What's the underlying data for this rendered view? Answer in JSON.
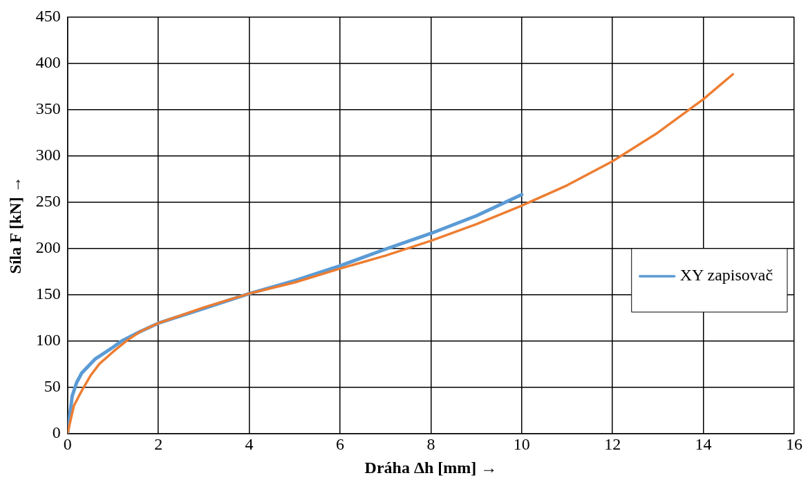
{
  "chart_data": {
    "type": "line",
    "xlabel": "Dráha Δh [mm] →",
    "ylabel": "Síla F [kN] →",
    "xlim": [
      0,
      16
    ],
    "xticks": [
      0,
      2,
      4,
      6,
      8,
      10,
      12,
      14,
      16
    ],
    "ylim": [
      0,
      450
    ],
    "yticks": [
      0,
      50,
      100,
      150,
      200,
      250,
      300,
      350,
      400,
      450
    ],
    "grid": true,
    "legend": "right",
    "marker": "none",
    "line_style": "solid",
    "series": [
      {
        "name": "XY zapisovač",
        "color": "#5b9bd5",
        "x": [
          0,
          0.1,
          0.2,
          0.31,
          0.6,
          1,
          1.2,
          1.6,
          2,
          3,
          4,
          5,
          6,
          7,
          8,
          9,
          10
        ],
        "values": [
          0,
          40,
          55,
          65,
          80,
          93,
          100,
          110,
          119,
          135,
          151,
          165,
          181,
          199,
          216,
          235,
          258
        ]
      },
      {
        "color": "#ed7d31",
        "x": [
          0,
          0.14,
          0.3,
          0.5,
          0.7,
          1,
          1.3,
          1.6,
          2,
          3,
          4,
          5,
          6,
          7,
          8,
          9,
          10,
          11,
          12,
          13,
          14,
          14.65
        ],
        "values": [
          0,
          30,
          45,
          62,
          75,
          88,
          100,
          110,
          119,
          136,
          151,
          163,
          178,
          192,
          208,
          226,
          246,
          268,
          294,
          325,
          361,
          388
        ]
      }
    ]
  }
}
